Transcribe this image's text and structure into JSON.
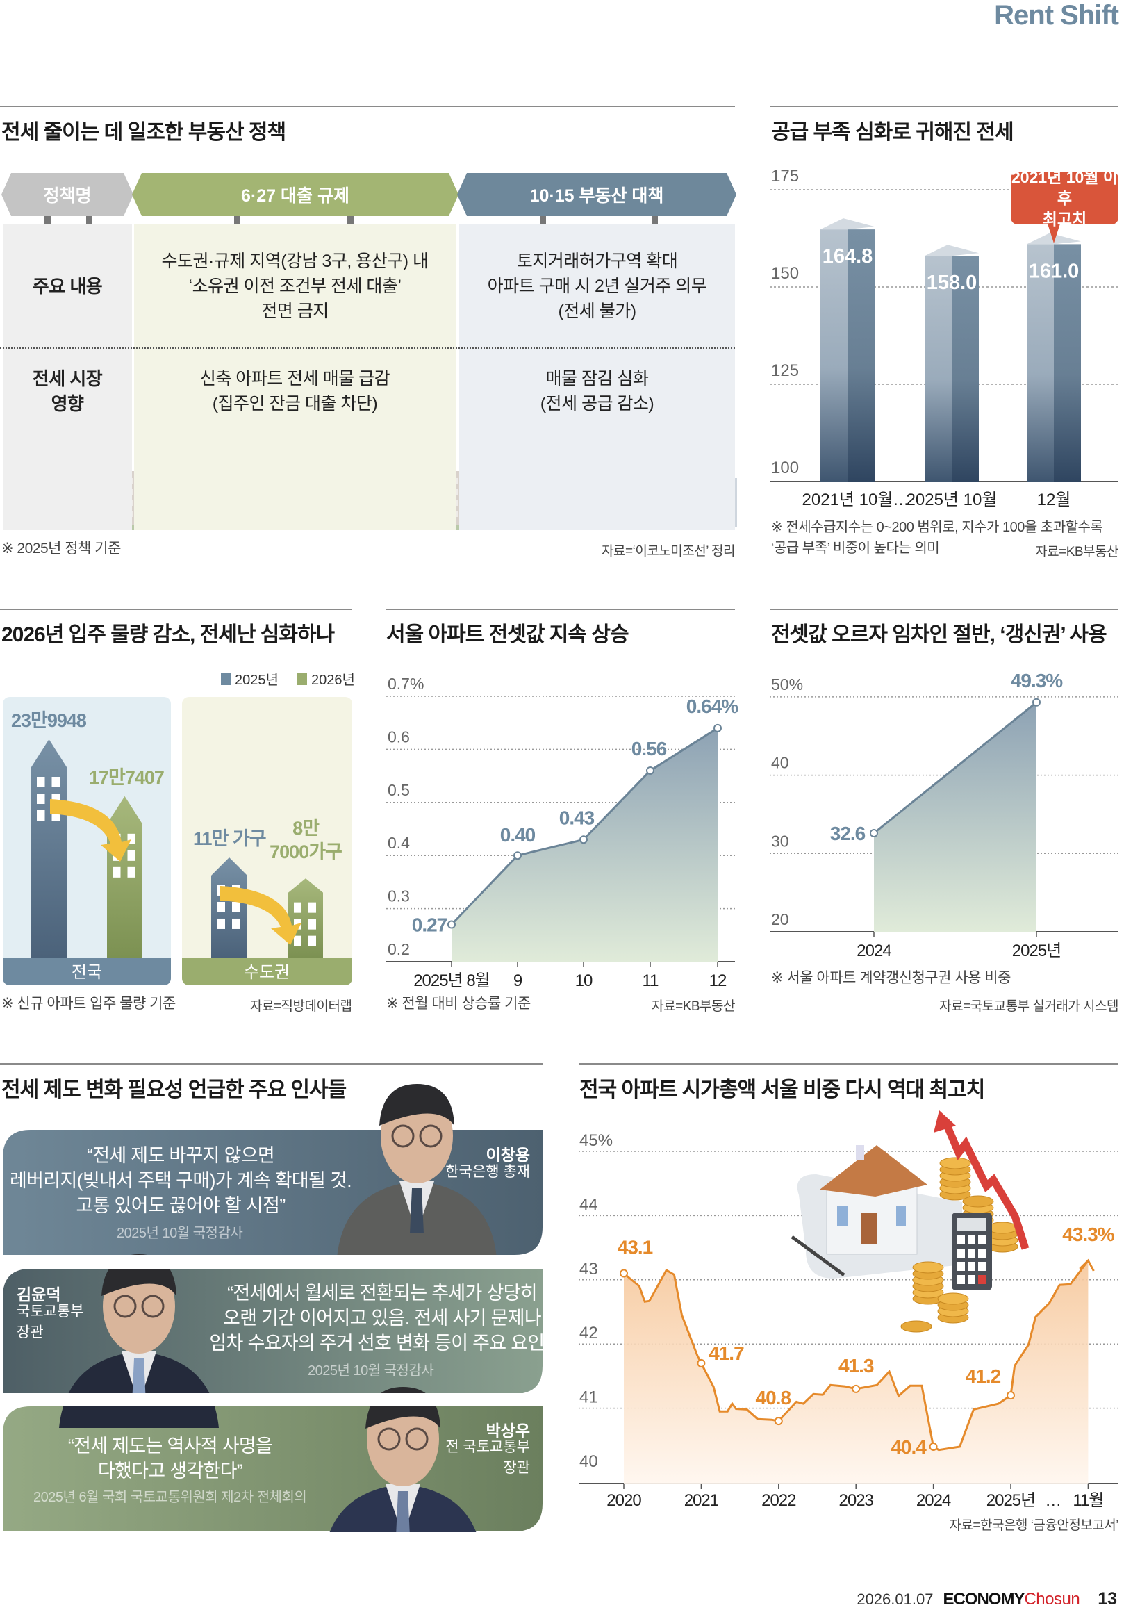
{
  "header": {
    "section_kicker": "Rent Shift"
  },
  "policy": {
    "title": "전세 줄이는 데 일조한 부동산 정책",
    "headers": [
      "정책명",
      "6·27 대출 규제",
      "10·15 부동산 대책"
    ],
    "header_colors": [
      "#c4c4c4",
      "#a3b573",
      "#6e889b"
    ],
    "rows": [
      {
        "label": "주요 내용",
        "cells": [
          "수도권·규제 지역(강남 3구, 용산구) 내\n‘소유권 이전 조건부 전세 대출’\n전면 금지",
          "토지거래허가구역 확대\n아파트 구매 시 2년 실거주 의무\n(전세 불가)"
        ]
      },
      {
        "label": "전세 시장\n영향",
        "cells": [
          "신축 아파트 전세 매물 급감\n(집주인 잔금 대출 차단)",
          "매물 잠김 심화\n(전세 공급 감소)"
        ]
      }
    ],
    "note": "※ 2025년 정책 기준",
    "source": "자료=‘이코노미조선’ 정리"
  },
  "chart_data": [
    {
      "type": "bar",
      "title": "공급 부족 심화로 귀해진 전세",
      "categories": [
        "2021년 10월",
        "2025년 10월",
        "12월"
      ],
      "category_gap_marker": "…",
      "values": [
        164.8,
        158.0,
        161.0
      ],
      "value_labels": [
        "164.8",
        "158.0",
        "161.0"
      ],
      "ylim": [
        100,
        175
      ],
      "yticks": [
        "100",
        "125",
        "150",
        "175"
      ],
      "grid": true,
      "callout": "2021년 10월 이후\n최고치",
      "callout_color": "#d9553a",
      "note": "※ 전세수급지수는 0~200 범위로, 지수가 100을 초과할수록\n   ‘공급 부족’ 비중이 높다는 의미",
      "source": "자료=KB부동산",
      "colors": {
        "bar": "#5f7890",
        "bar_light": "#b4c0cc"
      }
    },
    {
      "type": "bar",
      "title": "2026년 입주 물량 감소, 전세난 심화하나",
      "categories": [
        "전국",
        "수도권"
      ],
      "series": [
        {
          "name": "2025년",
          "values": [
            239948,
            110000
          ],
          "labels": [
            "23만9948",
            "11만 가구"
          ],
          "color": "#6e8aa0"
        },
        {
          "name": "2026년",
          "values": [
            177407,
            87000
          ],
          "labels": [
            "17만7407",
            "8만\n7000가구"
          ],
          "color": "#9aad6e"
        }
      ],
      "legend": "top-right",
      "note": "※ 신규 아파트 입주 물량 기준",
      "source": "자료=직방데이터랩"
    },
    {
      "type": "area",
      "title": "서울 아파트 전셋값 지속 상승",
      "categories": [
        "2025년 8월",
        "9",
        "10",
        "11",
        "12"
      ],
      "values": [
        0.27,
        0.4,
        0.43,
        0.56,
        0.64
      ],
      "value_labels": [
        "0.27",
        "0.40",
        "0.43",
        "0.56",
        "0.64%"
      ],
      "ylim": [
        0.2,
        0.7
      ],
      "yticks": [
        "0.2",
        "0.3",
        "0.4",
        "0.5",
        "0.6",
        "0.7%"
      ],
      "grid": true,
      "note": "※ 전월 대비 상승률 기준",
      "source": "자료=KB부동산",
      "colors": {
        "line": "#6b8497",
        "value": "#6e8aa0"
      }
    },
    {
      "type": "area",
      "title": "전셋값 오르자 임차인 절반, ‘갱신권’ 사용",
      "categories": [
        "2024",
        "2025년"
      ],
      "values": [
        32.6,
        49.3
      ],
      "value_labels": [
        "32.6",
        "49.3%"
      ],
      "ylim": [
        20,
        50
      ],
      "yticks": [
        "20",
        "30",
        "40",
        "50%"
      ],
      "grid": true,
      "note": "※ 서울 아파트 계약갱신청구권 사용 비중",
      "source": "자료=국토교통부 실거래가 시스템",
      "colors": {
        "line": "#6b8497",
        "value": "#6e8aa0"
      }
    },
    {
      "type": "area",
      "title": "전국 아파트 시가총액 서울 비중 다시 역대 최고치",
      "xticks": [
        {
          "label": "2020",
          "x": 2020
        },
        {
          "label": "2021",
          "x": 2021
        },
        {
          "label": "2022",
          "x": 2022
        },
        {
          "label": "2023",
          "x": 2023
        },
        {
          "label": "2024",
          "x": 2024
        },
        {
          "label": "2025년",
          "x": 2025
        },
        {
          "label": "11월",
          "x": 2026
        }
      ],
      "xtick_gap_marker": "…",
      "points": [
        [
          2020.0,
          43.1
        ],
        [
          2020.2,
          42.9
        ],
        [
          2020.27,
          42.66
        ],
        [
          2020.33,
          42.67
        ],
        [
          2020.55,
          43.15
        ],
        [
          2020.65,
          43.08
        ],
        [
          2020.75,
          42.45
        ],
        [
          2020.95,
          41.82
        ],
        [
          2021.0,
          41.7
        ],
        [
          2021.16,
          41.33
        ],
        [
          2021.24,
          40.95
        ],
        [
          2021.34,
          40.95
        ],
        [
          2021.4,
          41.07
        ],
        [
          2021.45,
          40.99
        ],
        [
          2021.59,
          40.98
        ],
        [
          2021.73,
          40.83
        ],
        [
          2021.91,
          40.82
        ],
        [
          2022.0,
          40.8
        ],
        [
          2022.23,
          41.1
        ],
        [
          2022.32,
          41.07
        ],
        [
          2022.45,
          41.22
        ],
        [
          2022.57,
          41.21
        ],
        [
          2022.67,
          41.36
        ],
        [
          2022.86,
          41.34
        ],
        [
          2023.0,
          41.3
        ],
        [
          2023.27,
          41.36
        ],
        [
          2023.43,
          41.57
        ],
        [
          2023.55,
          41.19
        ],
        [
          2023.7,
          41.35
        ],
        [
          2023.85,
          41.35
        ],
        [
          2024.0,
          40.4
        ],
        [
          2024.07,
          40.35
        ],
        [
          2024.34,
          40.4
        ],
        [
          2024.52,
          40.98
        ],
        [
          2024.84,
          41.07
        ],
        [
          2025.0,
          41.2
        ],
        [
          2025.05,
          41.66
        ],
        [
          2025.23,
          41.99
        ],
        [
          2025.32,
          42.42
        ],
        [
          2025.5,
          42.64
        ],
        [
          2025.63,
          42.92
        ],
        [
          2025.77,
          42.93
        ],
        [
          2026.0,
          43.3
        ]
      ],
      "labeled_points": [
        {
          "x": 2020.0,
          "y": 43.1,
          "label": "43.1"
        },
        {
          "x": 2021.0,
          "y": 41.7,
          "label": "41.7"
        },
        {
          "x": 2022.0,
          "y": 40.8,
          "label": "40.8"
        },
        {
          "x": 2023.0,
          "y": 41.3,
          "label": "41.3"
        },
        {
          "x": 2024.0,
          "y": 40.4,
          "label": "40.4"
        },
        {
          "x": 2025.0,
          "y": 41.2,
          "label": "41.2"
        },
        {
          "x": 2026.0,
          "y": 43.3,
          "label": "43.3%"
        }
      ],
      "ylim": [
        40,
        45
      ],
      "yticks": [
        "40",
        "41",
        "42",
        "43",
        "44",
        "45%"
      ],
      "grid": true,
      "source": "자료=한국은행 ‘금융안정보고서’",
      "colors": {
        "line": "#e58a2b",
        "fill": "#f6c79a"
      }
    }
  ],
  "quotes": {
    "title": "전세 제도 변화 필요성 언급한 주요 인사들",
    "items": [
      {
        "quote": "“전세 제도 바꾸지 않으면\n레버리지(빚내서 주택 구매)가 계속 확대될 것.\n고통 있어도 끊어야 할 시점”",
        "date": "2025년 10월 국정감사",
        "name": "이창용",
        "role": "한국은행 총재"
      },
      {
        "quote": "“전세에서 월세로 전환되는 추세가 상당히\n오랜 기간 이어지고 있음. 전세 사기 문제나\n임차 수요자의 주거 선호 변화 등이 주요 요인.”",
        "date": "2025년 10월 국정감사",
        "name": "김윤덕",
        "role": "국토교통부\n장관"
      },
      {
        "quote": "“전세 제도는 역사적 사명을\n다했다고 생각한다”",
        "date": "2025년 6월 국회 국토교통위원회 제2차 전체회의",
        "name": "박상우",
        "role": "전 국토교통부\n장관"
      }
    ]
  },
  "footer": {
    "date": "2026.01.07",
    "brand_a": "ECONOMY",
    "brand_b": "Chosun",
    "brand_b_color": "#d2232a",
    "page": "13"
  }
}
